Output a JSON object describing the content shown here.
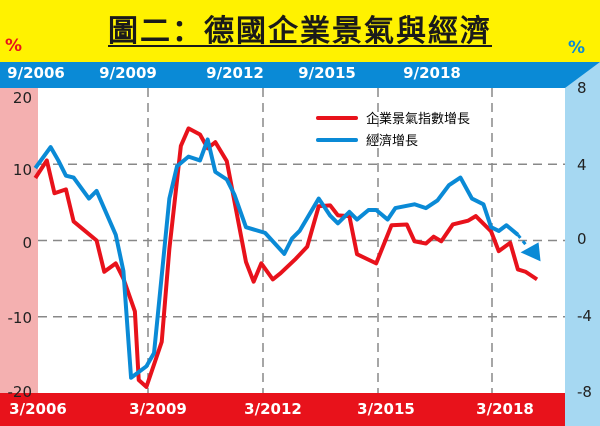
{
  "title": "圖二：德國企業景氣與經濟",
  "colors": {
    "header_bg": "#fff200",
    "top_bar": "#0a8ad6",
    "bottom_bar": "#e8121b",
    "left_axis_bg": "#f4b0b0",
    "right_axis_bg": "#a6d8f2",
    "business_line": "#e8121b",
    "economy_line": "#0a8ad6"
  },
  "chart_data": {
    "type": "line",
    "title": "圖二：德國企業景氣與經濟",
    "left_unit": "%",
    "right_unit": "%",
    "top_tick_labels": [
      "9/2006",
      "9/2009",
      "9/2012",
      "9/2015",
      "9/2018"
    ],
    "bottom_tick_labels": [
      "3/2006",
      "3/2009",
      "3/2012",
      "3/2015",
      "3/2018"
    ],
    "xlim": [
      2006.17,
      2019.93
    ],
    "left_ylim": [
      -20,
      20
    ],
    "left_ticks": [
      "20",
      "10",
      "0",
      "-10",
      "-20"
    ],
    "right_ylim": [
      -8,
      8
    ],
    "right_ticks": [
      "8",
      "4",
      "0",
      "-4",
      "-8"
    ],
    "grid": true,
    "legend_position": "top-right",
    "series": [
      {
        "name": "企業景氣指數增長",
        "axis": "left",
        "color": "#e8121b",
        "x": [
          2006.1,
          2006.4,
          2006.6,
          2006.9,
          2007.1,
          2007.7,
          2007.9,
          2008.2,
          2008.4,
          2008.7,
          2008.8,
          2009.0,
          2009.4,
          2009.6,
          2009.9,
          2010.1,
          2010.4,
          2010.6,
          2010.8,
          2011.1,
          2011.6,
          2011.8,
          2012.0,
          2012.3,
          2012.5,
          2012.9,
          2013.2,
          2013.5,
          2013.8,
          2014.0,
          2014.3,
          2014.5,
          2015.0,
          2015.4,
          2015.8,
          2016.0,
          2016.3,
          2016.5,
          2016.7,
          2017.0,
          2017.4,
          2017.6,
          2018.0,
          2018.2,
          2018.5,
          2018.7,
          2018.9,
          2019.2
        ],
        "y": [
          8.2,
          10.5,
          6.2,
          6.7,
          2.5,
          0,
          -4.1,
          -3.0,
          -5.0,
          -9.3,
          -18.3,
          -19.2,
          -13.3,
          -1.1,
          12.4,
          14.7,
          13.9,
          12.1,
          12.9,
          10.4,
          -2.8,
          -5.4,
          -3.0,
          -5.1,
          -4.3,
          -2.4,
          -0.8,
          4.5,
          4.6,
          3.3,
          3.2,
          -1.8,
          -3.0,
          2.0,
          2.1,
          -0.1,
          -0.4,
          0.5,
          -0.1,
          2.1,
          2.6,
          3.2,
          1.2,
          -1.4,
          -0.3,
          -3.8,
          -4.1,
          -5.1
        ]
      },
      {
        "name": "經濟增長",
        "axis": "right",
        "color": "#0a8ad6",
        "x": [
          2006.1,
          2006.5,
          2006.7,
          2006.9,
          2007.1,
          2007.5,
          2007.7,
          2008.2,
          2008.4,
          2008.6,
          2009.0,
          2009.2,
          2009.6,
          2009.8,
          2010.1,
          2010.4,
          2010.6,
          2010.8,
          2011.1,
          2011.3,
          2011.6,
          2012.1,
          2012.6,
          2012.8,
          2013.0,
          2013.5,
          2013.8,
          2014.0,
          2014.3,
          2014.5,
          2014.8,
          2015.0,
          2015.3,
          2015.5,
          2016.0,
          2016.3,
          2016.6,
          2016.9,
          2017.2,
          2017.5,
          2017.8,
          2018.0,
          2018.2,
          2018.4,
          2018.7
        ],
        "y": [
          3.8,
          4.9,
          4.2,
          3.4,
          3.3,
          2.2,
          2.6,
          0.3,
          -1.6,
          -7.2,
          -6.6,
          -5.9,
          2.2,
          3.9,
          4.4,
          4.2,
          5.3,
          3.6,
          3.2,
          2.4,
          0.7,
          0.4,
          -0.7,
          0.1,
          0.5,
          2.2,
          1.3,
          0.9,
          1.5,
          1.1,
          1.6,
          1.6,
          1.1,
          1.7,
          1.9,
          1.7,
          2.1,
          2.9,
          3.3,
          2.2,
          1.9,
          0.7,
          0.5,
          0.8,
          0.3
        ],
        "projection": {
          "x": [
            2018.7,
            2018.9
          ],
          "y": [
            0.3,
            -0.2
          ],
          "style": "dashed-arrow-down"
        }
      }
    ]
  }
}
